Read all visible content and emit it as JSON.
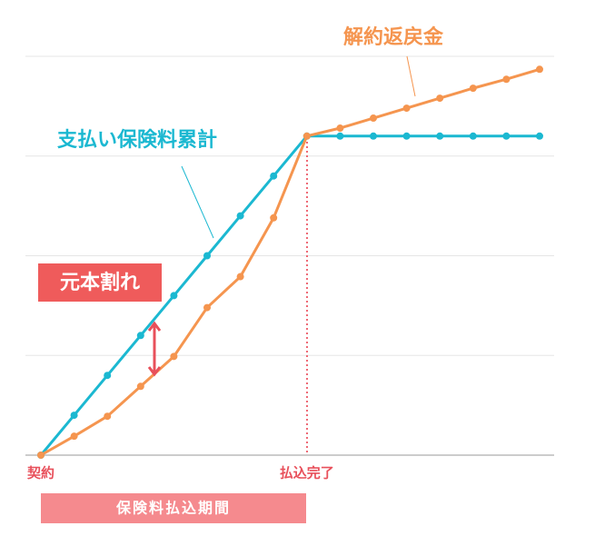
{
  "chart_data": {
    "type": "line",
    "categories": [
      "契約",
      null,
      null,
      null,
      null,
      null,
      null,
      null,
      "払込完了",
      null,
      null,
      null,
      null,
      null,
      null,
      null
    ],
    "series": [
      {
        "name": "支払い保険料累計",
        "color": "#1bb8d1",
        "values": [
          0,
          0.4,
          0.8,
          1.2,
          1.6,
          2.0,
          2.4,
          2.8,
          3.2,
          3.2,
          3.2,
          3.2,
          3.2,
          3.2,
          3.2,
          3.2
        ]
      },
      {
        "name": "解約返戻金",
        "color": "#f5954f",
        "values": [
          0,
          0.19,
          0.39,
          0.69,
          0.99,
          1.48,
          1.79,
          2.38,
          3.2,
          3.28,
          3.38,
          3.48,
          3.58,
          3.68,
          3.77,
          3.87
        ]
      }
    ],
    "ylim": [
      0,
      4
    ],
    "yticks": [
      0,
      1,
      2,
      3,
      4
    ],
    "grid": true,
    "annotations": {
      "loss": "元本割れ",
      "period": "保険料払込期間"
    }
  }
}
